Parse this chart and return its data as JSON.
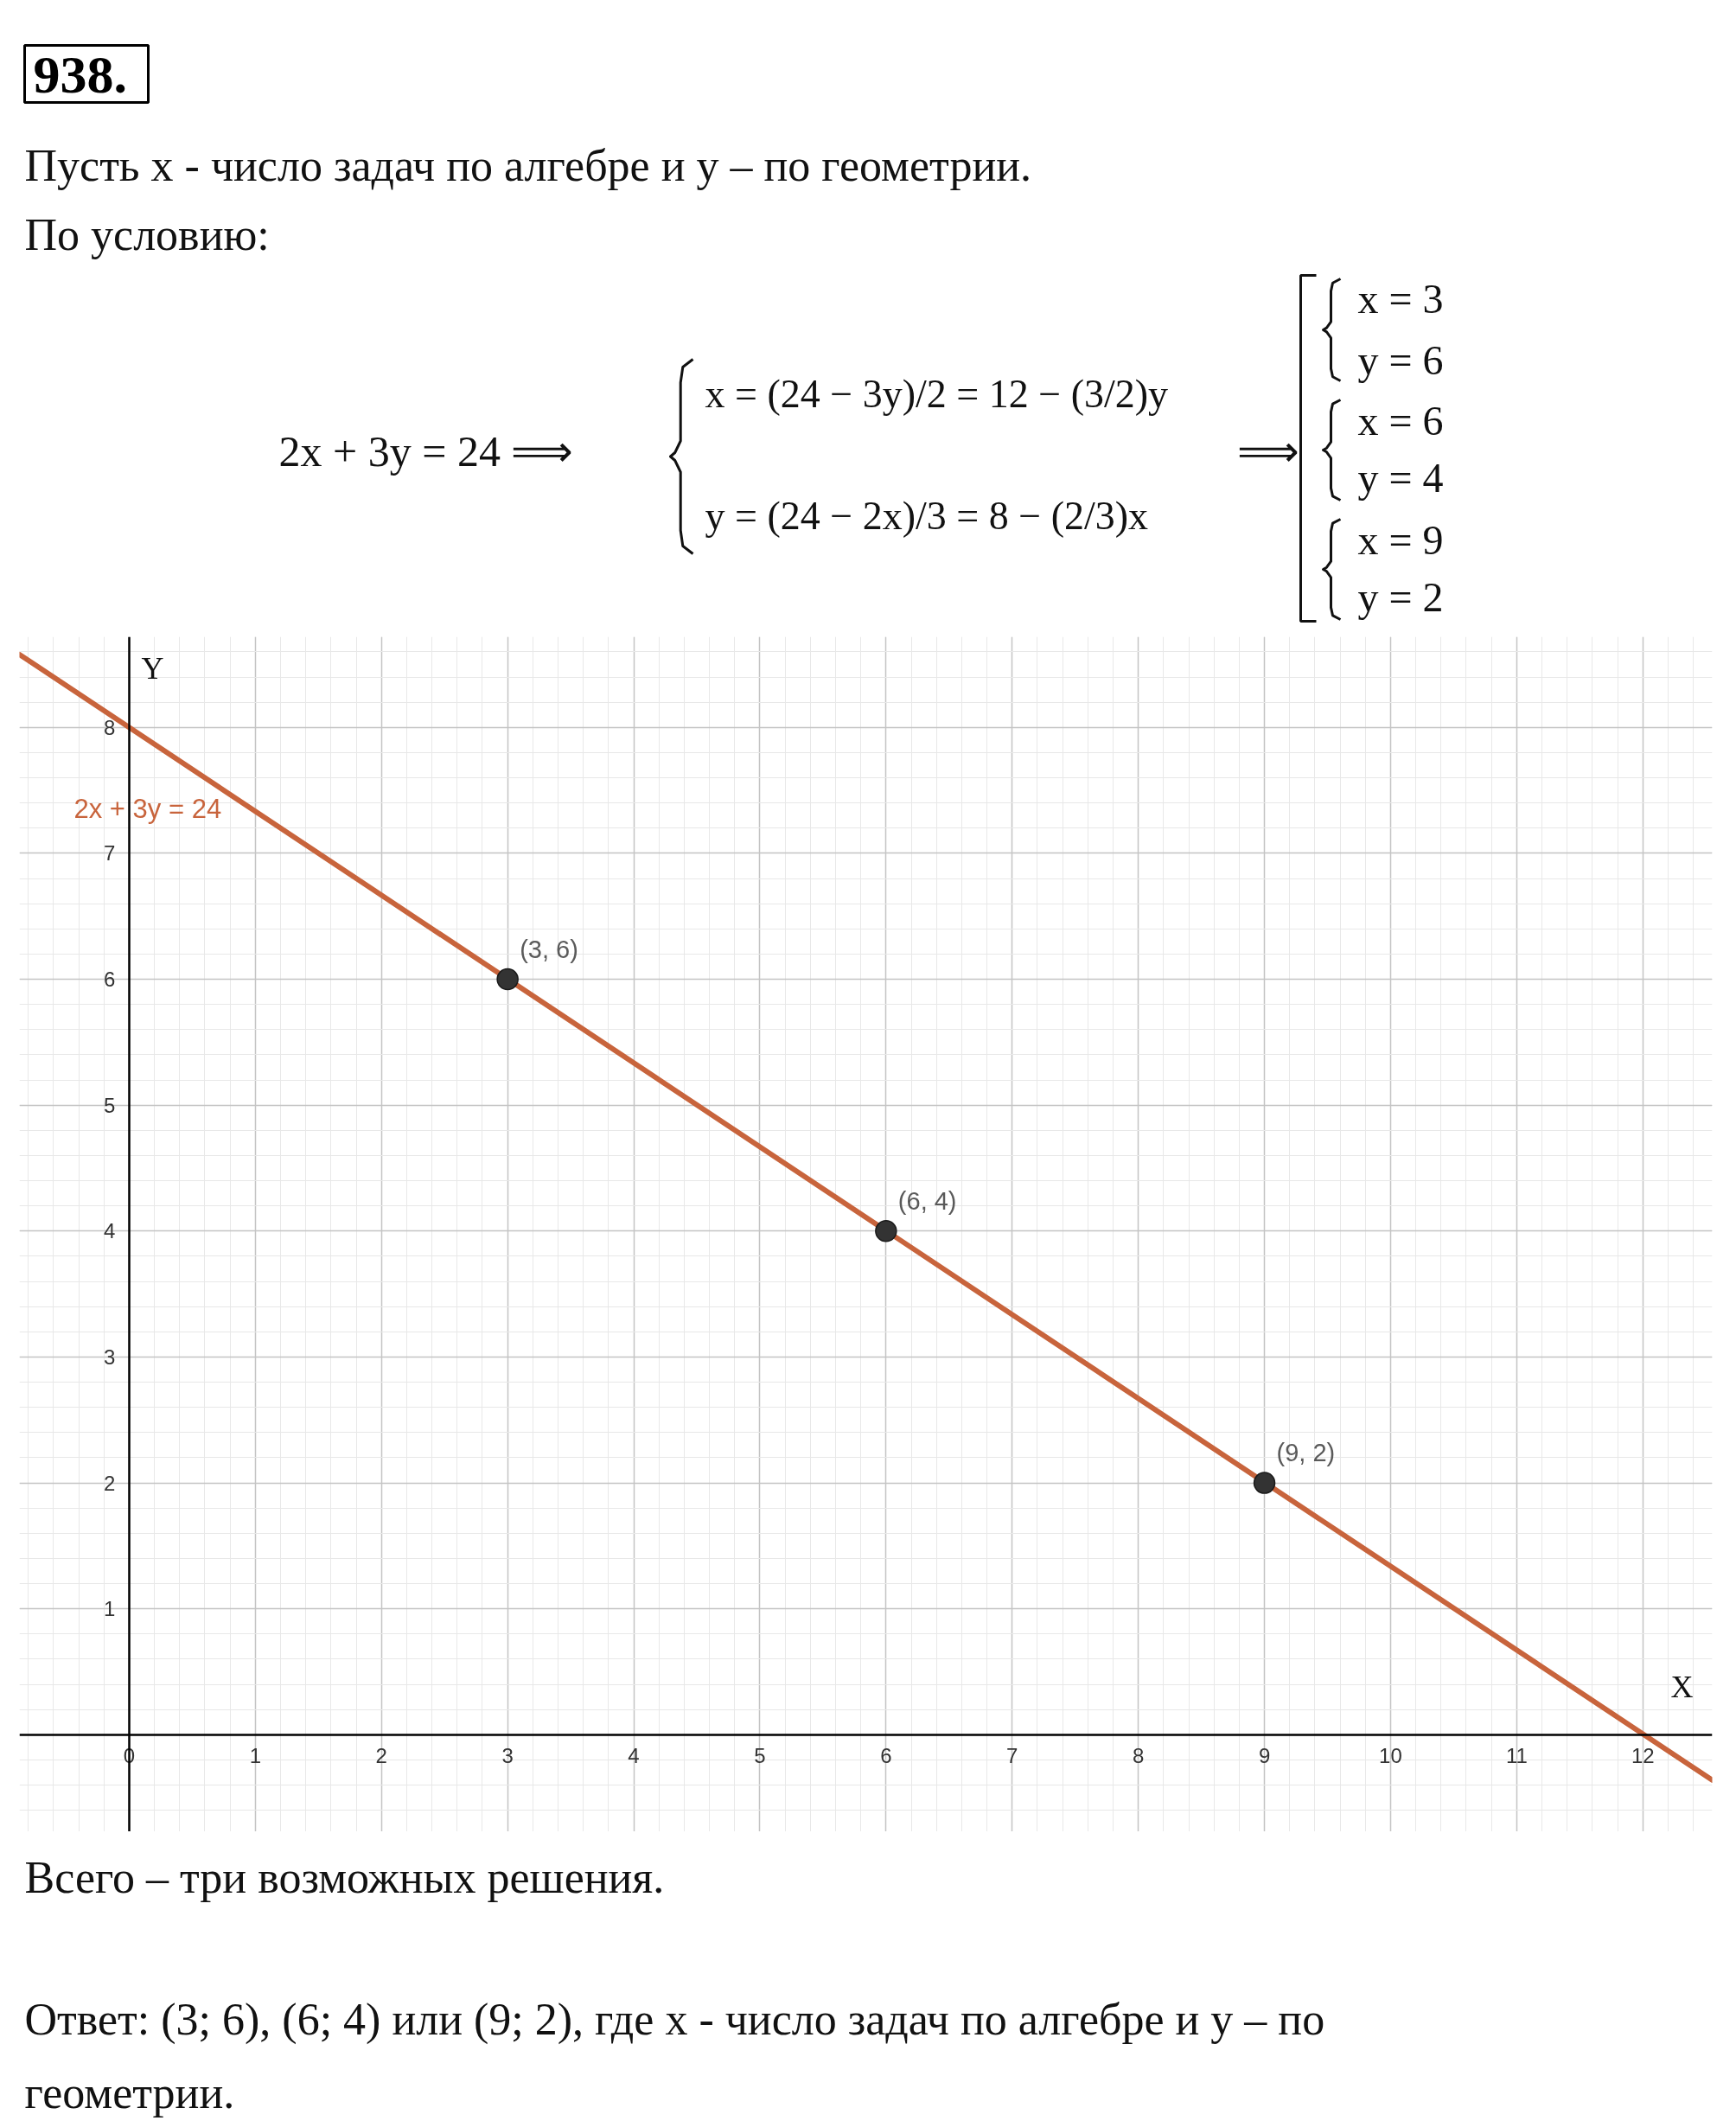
{
  "chart_data": {
    "type": "line",
    "title": "938.",
    "subtitle": "Пусть x - число задач по алгебре и y – по геометрии.",
    "xlabel": "X",
    "ylabel": "Y",
    "annotations": [
      "По условию:",
      "2x + 3y = 24 ⟹",
      "x = (24 − 3y)/2 = 12 − (3/2)y",
      "y = (24 − 2x)/3 = 8 − (2/3)x",
      "⟹",
      "x = 3",
      "y = 6",
      "x = 6",
      "y = 4",
      "x = 9",
      "y = 2",
      "Всего – три возможных решения.",
      "Ответ: (3; 6), (6; 4) или (9; 2), где x - число задач по алгебре и y – по геометрии."
    ],
    "series": [
      {
        "name": "2x + 3y = 24",
        "color": "#c8643c",
        "x": [
          -0.87,
          12.55
        ],
        "values": [
          8.58,
          -0.36
        ]
      },
      {
        "type": "scatter",
        "color": "#333333",
        "marker": "circle",
        "x": [
          3,
          6,
          9
        ],
        "values": [
          6,
          4,
          2
        ],
        "value_labels": [
          "(3, 6)",
          "(6, 4)",
          "(9, 2)"
        ]
      }
    ],
    "xlim": [
      -0.87,
      12.55
    ],
    "ylim": [
      -0.77,
      8.72
    ],
    "xticks": [
      0,
      1,
      2,
      3,
      4,
      5,
      6,
      7,
      8,
      9,
      10,
      11,
      12
    ],
    "yticks": [
      1,
      2,
      3,
      4,
      5,
      6,
      7,
      8
    ],
    "grid": true,
    "line_style": "solid"
  }
}
